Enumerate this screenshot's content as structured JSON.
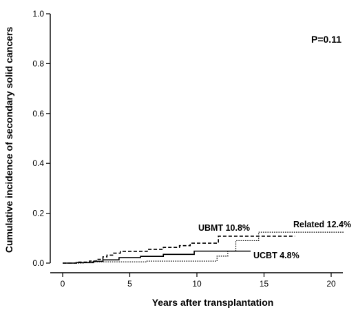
{
  "chart_data": {
    "type": "line",
    "title": "",
    "xlabel": "Years after transplantation",
    "ylabel": "Cumulative incidence of secondary solid cancers",
    "xlim": [
      0,
      22
    ],
    "ylim": [
      0,
      1.0
    ],
    "x_ticks": [
      0,
      5,
      10,
      15,
      20
    ],
    "y_ticks": [
      0.0,
      0.2,
      0.4,
      0.6,
      0.8,
      1.0
    ],
    "x_tick_labels": [
      "0",
      "5",
      "10",
      "15",
      "20"
    ],
    "y_tick_labels": [
      "0.0",
      "0.2",
      "0.4",
      "0.6",
      "0.8",
      "1.0"
    ],
    "grid": false,
    "legend": "none",
    "annotation": "P=0.11",
    "series": [
      {
        "name": "UBMT 10.8%",
        "style": "dashed",
        "color": "#000000",
        "steps": [
          [
            0,
            0.0
          ],
          [
            1.2,
            0.004
          ],
          [
            2.0,
            0.008
          ],
          [
            2.5,
            0.015
          ],
          [
            3.0,
            0.025
          ],
          [
            3.3,
            0.032
          ],
          [
            3.8,
            0.04
          ],
          [
            4.3,
            0.047
          ],
          [
            6.3,
            0.055
          ],
          [
            7.5,
            0.063
          ],
          [
            8.7,
            0.07
          ],
          [
            9.5,
            0.08
          ],
          [
            11.6,
            0.108
          ],
          [
            17.3,
            0.108
          ]
        ]
      },
      {
        "name": "UCBT 4.8%",
        "style": "solid",
        "color": "#000000",
        "steps": [
          [
            0,
            0.0
          ],
          [
            1.0,
            0.002
          ],
          [
            2.3,
            0.007
          ],
          [
            3.0,
            0.013
          ],
          [
            4.2,
            0.022
          ],
          [
            5.8,
            0.027
          ],
          [
            7.5,
            0.035
          ],
          [
            9.8,
            0.048
          ],
          [
            14.0,
            0.048
          ]
        ]
      },
      {
        "name": "Related 12.4%",
        "style": "dotted",
        "color": "#000000",
        "steps": [
          [
            0,
            0.0
          ],
          [
            1.6,
            0.003
          ],
          [
            2.2,
            0.005
          ],
          [
            6.2,
            0.008
          ],
          [
            11.5,
            0.028
          ],
          [
            12.3,
            0.048
          ],
          [
            12.9,
            0.09
          ],
          [
            14.6,
            0.124
          ],
          [
            21.0,
            0.124
          ]
        ]
      }
    ]
  }
}
